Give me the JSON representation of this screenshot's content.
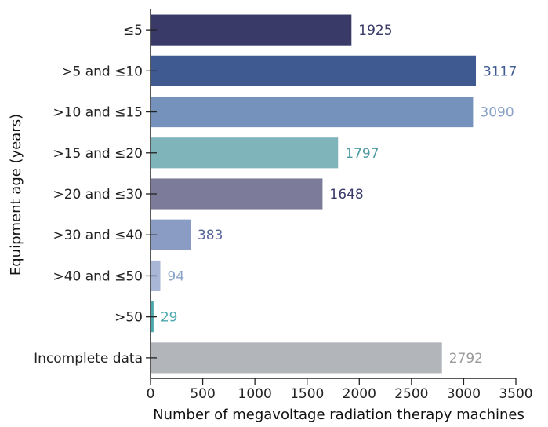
{
  "chart_data": {
    "type": "bar",
    "orientation": "horizontal",
    "title": "",
    "xlabel": "Number of megavoltage radiation therapy machines",
    "ylabel": "Equipment age (years)",
    "xlim": [
      0,
      3500
    ],
    "xticks": [
      "0",
      "500",
      "1000",
      "1500",
      "2000",
      "2500",
      "3000",
      "3500"
    ],
    "grid": false,
    "legend": "none",
    "categories": [
      "≤5",
      ">5 and ≤10",
      ">10 and ≤15",
      ">15 and ≤20",
      ">20 and ≤30",
      ">30 and ≤40",
      ">40 and ≤50",
      ">50",
      "Incomplete data"
    ],
    "values": [
      1925,
      3117,
      3090,
      1797,
      1648,
      383,
      94,
      29,
      2792
    ],
    "value_labels": [
      "1925",
      "3117",
      "3090",
      "1797",
      "1648",
      "383",
      "94",
      "29",
      "2792"
    ],
    "bar_colors": [
      "#3a3a69",
      "#3f5a90",
      "#7592bd",
      "#7fb4bb",
      "#7c7b9a",
      "#8a9cc3",
      "#a9b6d6",
      "#4aa7ad",
      "#b2b6ba"
    ],
    "label_colors": [
      "#3a3a69",
      "#3f5a90",
      "#8aa2c8",
      "#4d9aa1",
      "#3a3a69",
      "#55649a",
      "#8aa2c8",
      "#4aa7ad",
      "#9a9a9a"
    ]
  }
}
